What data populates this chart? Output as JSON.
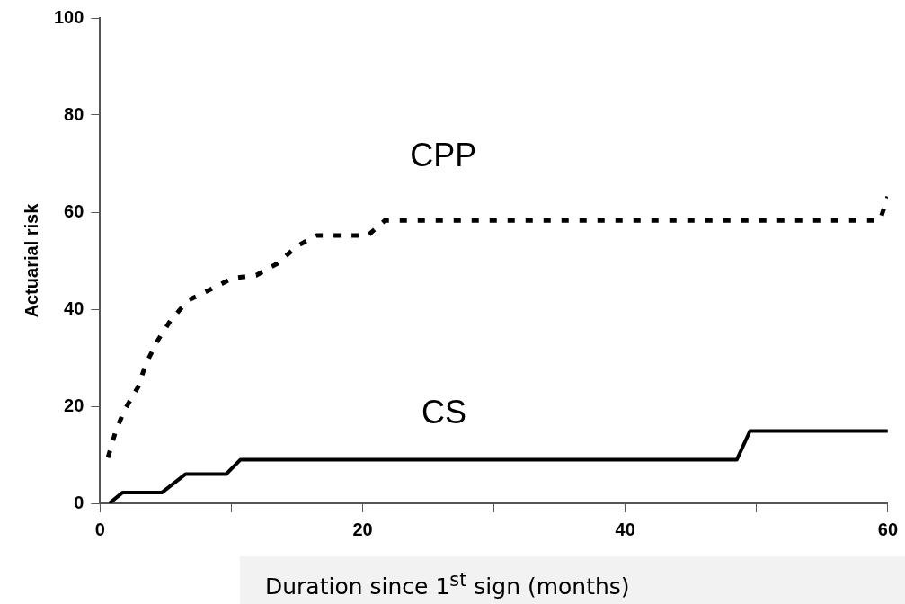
{
  "chart_data": {
    "type": "line",
    "xlabel": "Duration since 1$^{st}$ sign (months)",
    "ylabel": "Actuarial risk",
    "xlim": [
      0,
      60
    ],
    "xticks": [
      0,
      {
        "value": 10,
        "label": null
      },
      20,
      {
        "value": 30,
        "label": null
      },
      40,
      {
        "value": 50,
        "label": null
      },
      60
    ],
    "ylim": [
      0,
      100
    ],
    "yticks": [
      0,
      20,
      40,
      60,
      80,
      100
    ],
    "legend": false,
    "marker": "none",
    "series": [
      {
        "name": "CPP",
        "color": "#000000",
        "line_style": "dotted",
        "x": [
          0.6,
          1.2,
          1.9,
          2.9,
          3.5,
          4.4,
          5.4,
          6.7,
          8.5,
          10.1,
          11.9,
          13.5,
          15,
          16.5,
          20.4,
          21.7,
          59.4,
          60
        ],
        "values": [
          9.4,
          15,
          19.4,
          24,
          28.8,
          33.6,
          37.8,
          41.8,
          44.2,
          46.4,
          47,
          49.4,
          53,
          55.2,
          55.2,
          58.3,
          58.3,
          63.2
        ]
      },
      {
        "name": "CS",
        "color": "#000000",
        "line_style": "solid",
        "x": [
          0.7,
          1.7,
          4.7,
          6.5,
          9.6,
          10.7,
          48.5,
          49.5,
          60
        ],
        "values": [
          0,
          2.2,
          2.2,
          6,
          6,
          9,
          9,
          14.9,
          14.9
        ]
      }
    ]
  }
}
